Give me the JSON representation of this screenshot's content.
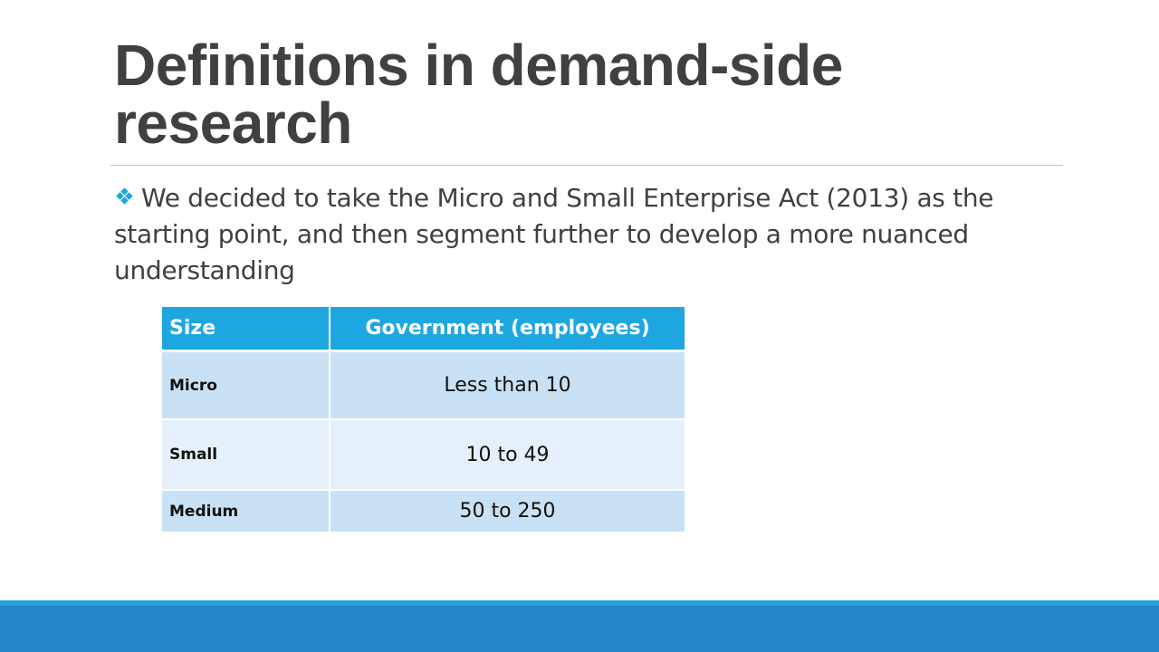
{
  "slide": {
    "title": "Definitions in demand-side research",
    "bullet": {
      "icon": "diamond-bullet-icon",
      "text": "We decided to take the Micro and Small Enterprise Act (2013) as the starting point, and then segment further to develop a more nuanced understanding"
    },
    "table": {
      "headers": {
        "size": "Size",
        "government": "Government (employees)"
      },
      "rows": [
        {
          "size": "Micro",
          "value": "Less than 10"
        },
        {
          "size": "Small",
          "value": "10 to 49"
        },
        {
          "size": "Medium",
          "value": "50 to 250"
        }
      ]
    },
    "colors": {
      "title_text": "#404040",
      "header_fill": "#1ea6e0",
      "row_dark": "#c9e1f4",
      "row_light": "#e5f0fa",
      "footer_bar": "#2686c8",
      "footer_accent": "#20a4df",
      "bullet_icon": "#1ea6e0"
    }
  }
}
